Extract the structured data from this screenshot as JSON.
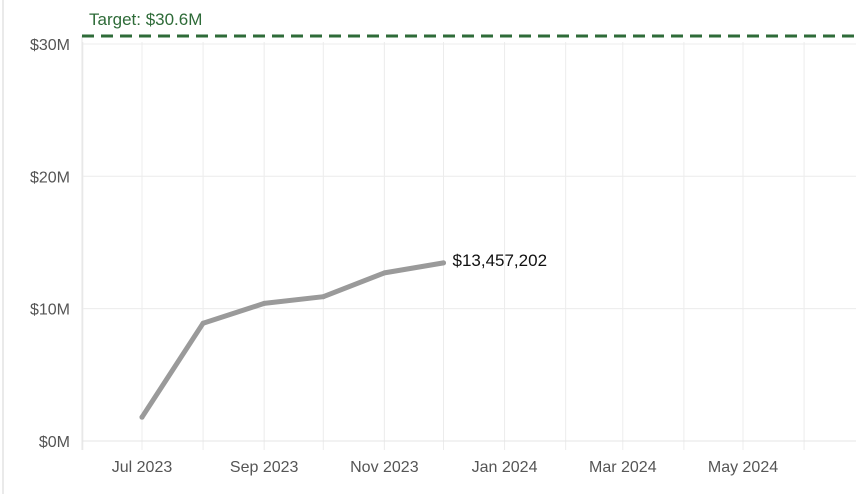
{
  "chart_data": {
    "type": "line",
    "title": "",
    "xlabel": "",
    "ylabel": "",
    "ylim": [
      0,
      30600000
    ],
    "y_ticks": [
      {
        "value": 0,
        "label": "$0M"
      },
      {
        "value": 10000000,
        "label": "$10M"
      },
      {
        "value": 20000000,
        "label": "$20M"
      },
      {
        "value": 30000000,
        "label": "$30M"
      }
    ],
    "x_ticks": [
      {
        "date": "2023-07-01",
        "label": "Jul 2023"
      },
      {
        "date": "2023-09-01",
        "label": "Sep 2023"
      },
      {
        "date": "2023-11-01",
        "label": "Nov 2023"
      },
      {
        "date": "2024-01-01",
        "label": "Jan 2024"
      },
      {
        "date": "2024-03-01",
        "label": "Mar 2024"
      },
      {
        "date": "2024-05-01",
        "label": "May 2024"
      }
    ],
    "x_range": [
      "2023-06-01",
      "2024-07-01"
    ],
    "series": [
      {
        "color": "#9a9a9a",
        "points": [
          {
            "x": "2023-07-01",
            "y": 1800000
          },
          {
            "x": "2023-08-01",
            "y": 8900000
          },
          {
            "x": "2023-09-01",
            "y": 10400000
          },
          {
            "x": "2023-10-01",
            "y": 10900000
          },
          {
            "x": "2023-11-01",
            "y": 12700000
          },
          {
            "x": "2023-12-01",
            "y": 13457202
          }
        ]
      }
    ],
    "end_label": "$13,457,202",
    "target": {
      "value": 30600000,
      "label": "Target: $30.6M",
      "color": "#2e6b38"
    },
    "grid": true
  }
}
